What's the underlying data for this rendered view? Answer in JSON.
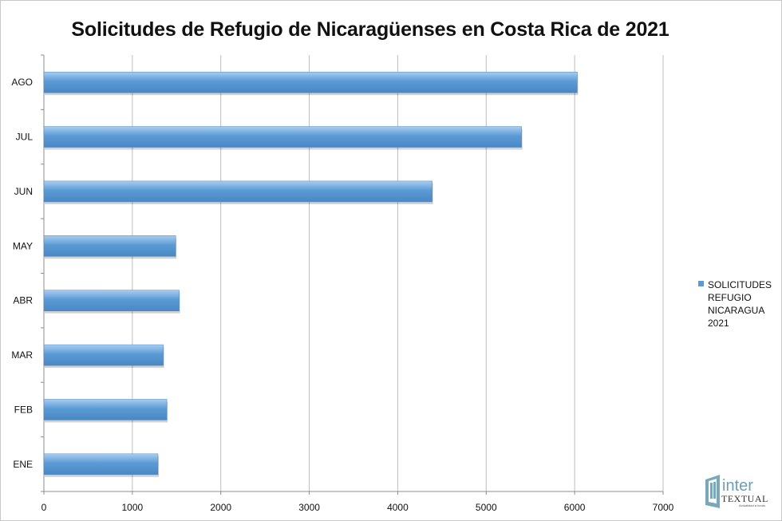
{
  "chart_data": {
    "type": "bar",
    "orientation": "horizontal",
    "title": "Solicitudes de Refugio de Nicaragüenses en Costa Rica de 2021",
    "categories": [
      "ENE",
      "FEB",
      "MAR",
      "ABR",
      "MAY",
      "JUN",
      "JUL",
      "AGO"
    ],
    "series": [
      {
        "name": "SOLICITUDES REFUGIO NICARAGUA 2021",
        "values": [
          1290,
          1390,
          1350,
          1530,
          1490,
          4390,
          5400,
          6030
        ],
        "color": "#5b9bd5"
      }
    ],
    "xlim": [
      0,
      7000
    ],
    "xticks": [
      "0",
      "1000",
      "2000",
      "3000",
      "4000",
      "5000",
      "6000",
      "7000"
    ],
    "xlabel": "",
    "ylabel": "",
    "grid": "vertical",
    "legend_position": "right"
  },
  "watermark": {
    "text_top": "inter",
    "text_bottom": "TEXTUAL",
    "tagline": "Actualidad a fondo"
  }
}
